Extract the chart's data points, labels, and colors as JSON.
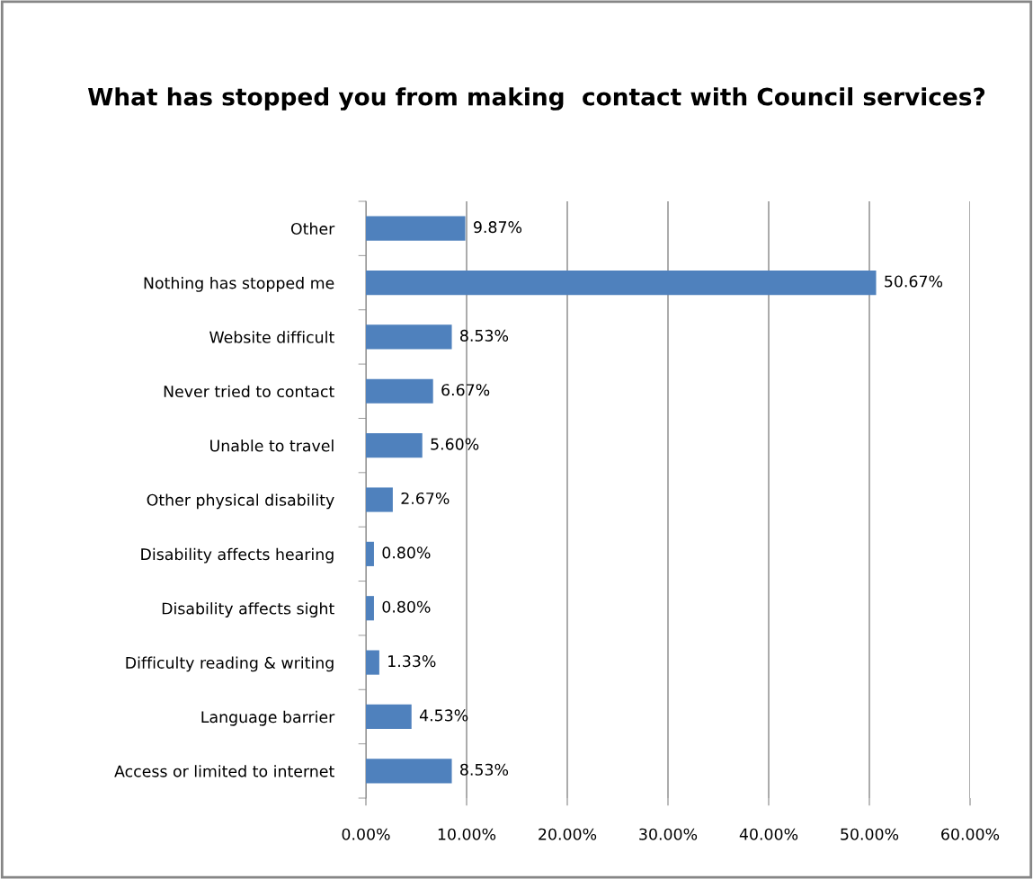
{
  "chart_data": {
    "type": "bar",
    "orientation": "horizontal",
    "title": "What has stopped you from making  contact with Council services?",
    "categories": [
      "Other",
      "Nothing has stopped me",
      "Website difficult",
      "Never tried to contact",
      "Unable to travel",
      "Other physical disability",
      "Disability affects hearing",
      "Disability affects sight",
      "Difficulty reading & writing",
      "Language barrier",
      "Access or limited to internet"
    ],
    "values": [
      9.87,
      50.67,
      8.53,
      6.67,
      5.6,
      2.67,
      0.8,
      0.8,
      1.33,
      4.53,
      8.53
    ],
    "value_labels": [
      "9.87%",
      "50.67%",
      "8.53%",
      "6.67%",
      "5.60%",
      "2.67%",
      "0.80%",
      "0.80%",
      "1.33%",
      "4.53%",
      "8.53%"
    ],
    "color": "#4f81bd",
    "xlim": [
      0,
      60
    ],
    "xticks": [
      {
        "value": 0,
        "label": "0.00%"
      },
      {
        "value": 10,
        "label": "10.00%"
      },
      {
        "value": 20,
        "label": "20.00%"
      },
      {
        "value": 30,
        "label": "30.00%"
      },
      {
        "value": 40,
        "label": "40.00%"
      },
      {
        "value": 50,
        "label": "50.00%"
      },
      {
        "value": 60,
        "label": "60.00%"
      }
    ],
    "grid": "x",
    "legend": false
  }
}
